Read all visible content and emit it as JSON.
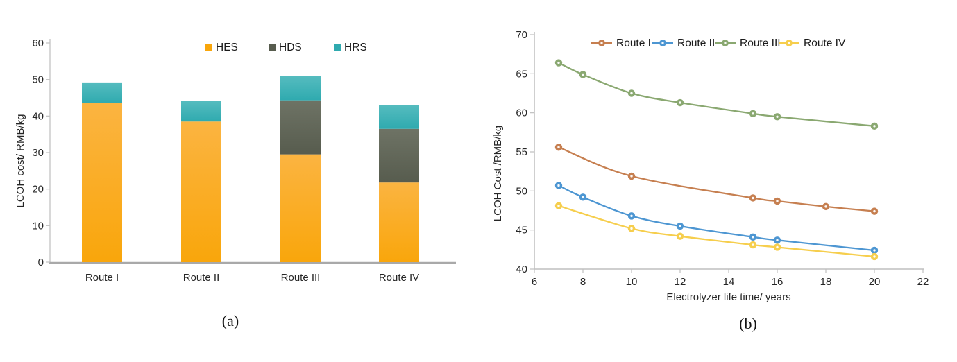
{
  "figure": {
    "captions": {
      "a": "(a)",
      "b": "(b)"
    }
  },
  "chart_data": [
    {
      "id": "a",
      "type": "bar",
      "stacked": true,
      "title": "",
      "xlabel": "",
      "ylabel": "LCOH cost/ RMB/kg",
      "ylim": [
        0,
        60
      ],
      "ytick_step": 10,
      "grid": false,
      "legend_position": "top-center",
      "categories": [
        "Route I",
        "Route II",
        "Route III",
        "Route IV"
      ],
      "series": [
        {
          "name": "HES",
          "color": "#F9A60B",
          "color_top": "#FBB441",
          "values": [
            43.5,
            38.5,
            29.5,
            21.8
          ]
        },
        {
          "name": "HDS",
          "color": "#575C4E",
          "color_top": "#6E7365",
          "values": [
            0,
            0,
            14.8,
            14.7
          ]
        },
        {
          "name": "HRS",
          "color": "#2FAAAF",
          "color_top": "#55BCBF",
          "values": [
            5.7,
            5.6,
            6.6,
            6.5
          ]
        }
      ],
      "stack_totals": [
        49.2,
        44.1,
        50.9,
        43.0
      ]
    },
    {
      "id": "b",
      "type": "line",
      "title": "",
      "xlabel": "Electrolyzer life time/ years",
      "ylabel": "LCOH Cost /RMB/kg",
      "xlim": [
        6,
        22
      ],
      "xtick_step": 2,
      "ylim": [
        40,
        70
      ],
      "ytick_step": 5,
      "grid": false,
      "legend_position": "top",
      "series": [
        {
          "name": "Route I",
          "color": "#C67F50",
          "points": [
            [
              7,
              55.6
            ],
            [
              10,
              51.9
            ],
            [
              15,
              49.1
            ],
            [
              16,
              48.7
            ],
            [
              18,
              48.0
            ],
            [
              20,
              47.4
            ]
          ]
        },
        {
          "name": "Route II",
          "color": "#4D96D2",
          "points": [
            [
              7,
              50.7
            ],
            [
              8,
              49.2
            ],
            [
              10,
              46.8
            ],
            [
              12,
              45.5
            ],
            [
              15,
              44.1
            ],
            [
              16,
              43.7
            ],
            [
              20,
              42.4
            ]
          ]
        },
        {
          "name": "Route III",
          "color": "#8AA871",
          "points": [
            [
              7,
              66.4
            ],
            [
              8,
              64.9
            ],
            [
              10,
              62.5
            ],
            [
              12,
              61.3
            ],
            [
              15,
              59.9
            ],
            [
              16,
              59.5
            ],
            [
              20,
              58.3
            ]
          ]
        },
        {
          "name": "Route IV",
          "color": "#F6CE4D",
          "points": [
            [
              7,
              48.1
            ],
            [
              10,
              45.2
            ],
            [
              12,
              44.2
            ],
            [
              15,
              43.1
            ],
            [
              16,
              42.8
            ],
            [
              20,
              41.6
            ]
          ]
        }
      ]
    }
  ]
}
